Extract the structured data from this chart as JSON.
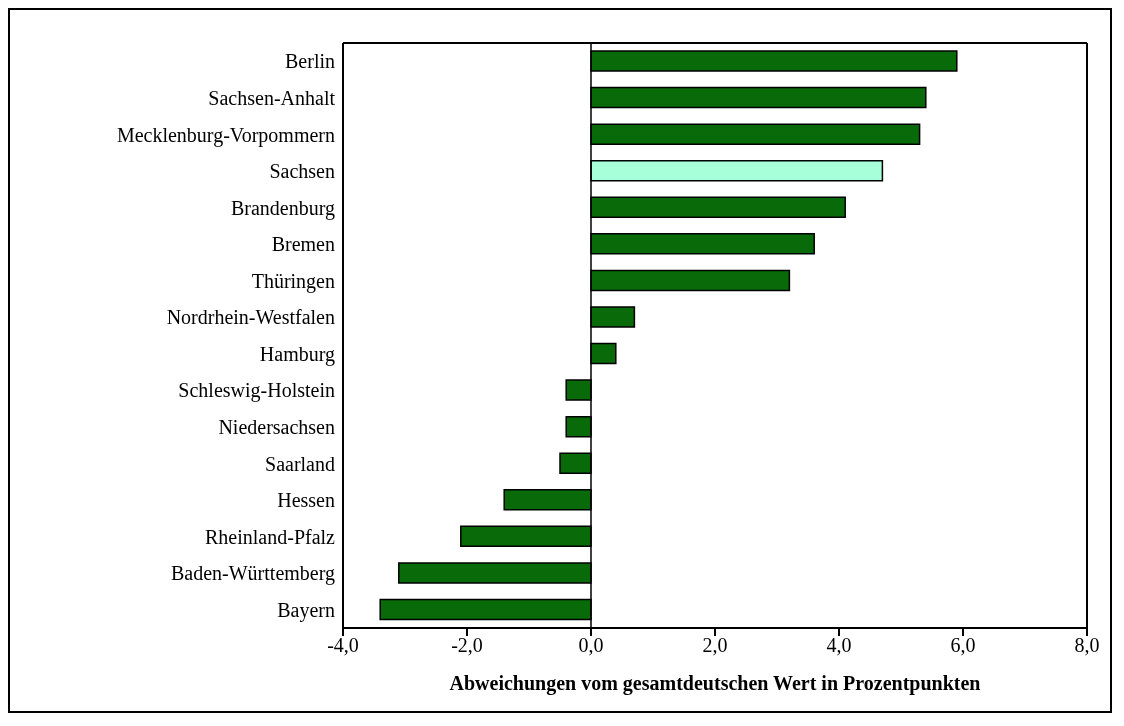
{
  "chart_data": {
    "type": "bar",
    "orientation": "horizontal",
    "xlabel": "Abweichungen vom gesamtdeutschen Wert in Prozentpunkten",
    "categories": [
      "Berlin",
      "Sachsen-Anhalt",
      "Mecklenburg-Vorpommern",
      "Sachsen",
      "Brandenburg",
      "Bremen",
      "Thüringen",
      "Nordrhein-Westfalen",
      "Hamburg",
      "Schleswig-Holstein",
      "Niedersachsen",
      "Saarland",
      "Hessen",
      "Rheinland-Pfalz",
      "Baden-Württemberg",
      "Bayern"
    ],
    "values": [
      5.9,
      5.4,
      5.3,
      4.7,
      4.1,
      3.6,
      3.2,
      0.7,
      0.4,
      -0.4,
      -0.4,
      -0.5,
      -1.4,
      -2.1,
      -3.1,
      -3.4
    ],
    "colors": [
      "#086a08",
      "#086a08",
      "#086a08",
      "#a6ffd9",
      "#086a08",
      "#086a08",
      "#086a08",
      "#086a08",
      "#086a08",
      "#086a08",
      "#086a08",
      "#086a08",
      "#086a08",
      "#086a08",
      "#086a08",
      "#086a08"
    ],
    "xlim": [
      -4,
      8
    ],
    "xticks": [
      {
        "value": -4,
        "label": "-4,0"
      },
      {
        "value": -2,
        "label": "-2,0"
      },
      {
        "value": 0,
        "label": "0,0"
      },
      {
        "value": 2,
        "label": "2,0"
      },
      {
        "value": 4,
        "label": "4,0"
      },
      {
        "value": 6,
        "label": "6,0"
      },
      {
        "value": 8,
        "label": "8,0"
      }
    ],
    "ref_lines": [
      {
        "axis": "x",
        "value": 0,
        "color": "#000000"
      }
    ],
    "grid": false
  }
}
